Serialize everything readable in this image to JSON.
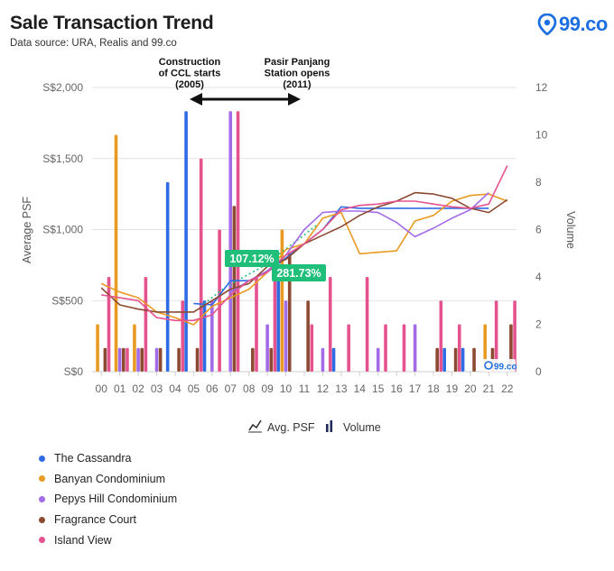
{
  "header": {
    "title": "Sale Transaction Trend",
    "subtitle": "Data source: URA, Realis and 99.co",
    "logo_text": "99.co"
  },
  "colors": {
    "cassandra": "#2f6be4",
    "banyan": "#e99a22",
    "pepys": "#a46be8",
    "fragrance": "#8c4a32",
    "island": "#e5538e",
    "annotation_badge": "#1fbf7a",
    "grid": "#e3e3e3",
    "axis_text": "#666666"
  },
  "chart_data": {
    "type": "bar",
    "title": "Sale Transaction Trend",
    "ylabel": "Average PSF",
    "y2label": "Volume",
    "ylim": [
      0,
      2000
    ],
    "y2lim": [
      0,
      12
    ],
    "yticks": [
      "S$0",
      "S$500",
      "S$1,000",
      "S$1,500",
      "S$2,000"
    ],
    "y2ticks": [
      "0",
      "2",
      "4",
      "6",
      "8",
      "10",
      "12"
    ],
    "categories": [
      "00",
      "01",
      "02",
      "03",
      "04",
      "05",
      "06",
      "07",
      "08",
      "09",
      "10",
      "11",
      "12",
      "13",
      "14",
      "15",
      "16",
      "17",
      "18",
      "19",
      "20",
      "21",
      "22"
    ],
    "legend_top": [
      {
        "label": "Avg. PSF",
        "icon": "line-chart-icon"
      },
      {
        "label": "Volume",
        "icon": "bar-chart-icon"
      }
    ],
    "series": [
      {
        "name": "The Cassandra",
        "color": "#2f6be4",
        "volume": [
          0,
          0,
          0,
          0,
          8,
          11,
          3,
          0,
          0,
          0,
          4,
          0,
          0,
          1,
          0,
          0,
          0,
          0,
          0,
          1,
          1,
          0,
          0
        ],
        "psf": [
          null,
          null,
          null,
          null,
          null,
          480,
          470,
          640,
          640,
          700,
          800,
          900,
          1000,
          1160,
          1150,
          1150,
          1150,
          1150,
          1150,
          1150,
          1150,
          1150,
          null
        ]
      },
      {
        "name": "Banyan Condominium",
        "color": "#e99a22",
        "volume": [
          2,
          10,
          2,
          0,
          0,
          0,
          0,
          0,
          0,
          0,
          6,
          0,
          0,
          0,
          0,
          0,
          0,
          0,
          0,
          0,
          0,
          2,
          0
        ],
        "psf": [
          620,
          560,
          520,
          420,
          380,
          330,
          460,
          520,
          580,
          700,
          860,
          900,
          1080,
          1120,
          830,
          840,
          850,
          1060,
          1100,
          1200,
          1240,
          1250,
          1200
        ]
      },
      {
        "name": "Pepys Hill Condominium",
        "color": "#a46be8",
        "volume": [
          0,
          1,
          1,
          1,
          0,
          0,
          3,
          11,
          0,
          2,
          3,
          0,
          1,
          0,
          0,
          1,
          0,
          2,
          0,
          0,
          0,
          0,
          0
        ],
        "psf": [
          null,
          null,
          null,
          null,
          null,
          null,
          null,
          560,
          640,
          710,
          820,
          1000,
          1120,
          1130,
          1130,
          1120,
          1050,
          950,
          1010,
          1080,
          1140,
          1260,
          null
        ]
      },
      {
        "name": "Fragrance Court",
        "color": "#8c4a32",
        "volume": [
          1,
          1,
          1,
          1,
          1,
          1,
          0,
          7,
          1,
          1,
          5,
          3,
          0,
          0,
          0,
          0,
          0,
          0,
          1,
          1,
          1,
          1,
          2
        ],
        "psf": [
          590,
          470,
          440,
          420,
          420,
          420,
          500,
          580,
          620,
          740,
          790,
          900,
          960,
          1020,
          1100,
          1160,
          1200,
          1260,
          1250,
          1220,
          1150,
          1120,
          1210
        ]
      },
      {
        "name": "Island View",
        "color": "#e5538e",
        "volume": [
          4,
          1,
          4,
          0,
          3,
          9,
          6,
          11,
          4,
          5,
          0,
          2,
          4,
          2,
          4,
          2,
          2,
          0,
          3,
          2,
          0,
          3,
          3
        ],
        "psf": [
          540,
          520,
          500,
          380,
          360,
          360,
          400,
          540,
          640,
          700,
          820,
          900,
          1000,
          1140,
          1170,
          1180,
          1200,
          1200,
          1180,
          1160,
          1150,
          1180,
          1450
        ]
      }
    ],
    "annotations": [
      {
        "text": [
          "Construction",
          "of CCL starts",
          "(2005)"
        ]
      },
      {
        "text": [
          "Pasir Panjang",
          "Station opens",
          "(2011)"
        ]
      }
    ],
    "badges": [
      "107.12%",
      "281.73%"
    ],
    "watermark": "99.co",
    "grid": true,
    "legend_position": "bottom"
  }
}
